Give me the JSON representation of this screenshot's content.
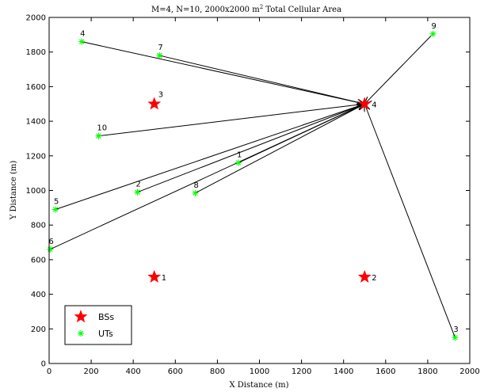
{
  "chart_data": {
    "type": "scatter",
    "title": "M=4, N=10, 2000x2000 m",
    "title_sup": "2",
    "title_suffix": " Total Cellular Area",
    "xlabel": "X Distance (m)",
    "ylabel": "Y Distance (m)",
    "xlim": [
      0,
      2000
    ],
    "ylim": [
      0,
      2000
    ],
    "xticks": [
      0,
      200,
      400,
      600,
      800,
      1000,
      1200,
      1400,
      1600,
      1800,
      2000
    ],
    "yticks": [
      0,
      200,
      400,
      600,
      800,
      1000,
      1200,
      1400,
      1600,
      1800,
      2000
    ],
    "grid": false,
    "legend_position": "bottom-left",
    "series": [
      {
        "name": "BSs",
        "marker": "star",
        "color": "#ff0000",
        "points": [
          {
            "label": "1",
            "x": 500,
            "y": 500
          },
          {
            "label": "2",
            "x": 1500,
            "y": 500
          },
          {
            "label": "3",
            "x": 500,
            "y": 1500
          },
          {
            "label": "4",
            "x": 1500,
            "y": 1500
          }
        ]
      },
      {
        "name": "UTs",
        "marker": "asterisk",
        "color": "#00ff00",
        "points": [
          {
            "label": "1",
            "x": 900,
            "y": 1160
          },
          {
            "label": "2",
            "x": 420,
            "y": 990
          },
          {
            "label": "3",
            "x": 1930,
            "y": 150
          },
          {
            "label": "4",
            "x": 155,
            "y": 1860
          },
          {
            "label": "5",
            "x": 30,
            "y": 890
          },
          {
            "label": "6",
            "x": 5,
            "y": 660
          },
          {
            "label": "7",
            "x": 525,
            "y": 1780
          },
          {
            "label": "8",
            "x": 695,
            "y": 985
          },
          {
            "label": "9",
            "x": 1825,
            "y": 1905
          },
          {
            "label": "10",
            "x": 235,
            "y": 1315
          }
        ]
      }
    ],
    "arrows": [
      {
        "from": [
          155,
          1860
        ],
        "to": [
          1500,
          1500
        ]
      },
      {
        "from": [
          525,
          1780
        ],
        "to": [
          1500,
          1500
        ]
      },
      {
        "from": [
          235,
          1315
        ],
        "to": [
          1500,
          1500
        ]
      },
      {
        "from": [
          30,
          890
        ],
        "to": [
          1500,
          1500
        ]
      },
      {
        "from": [
          5,
          660
        ],
        "to": [
          1500,
          1500
        ]
      },
      {
        "from": [
          420,
          990
        ],
        "to": [
          1500,
          1500
        ]
      },
      {
        "from": [
          695,
          985
        ],
        "to": [
          1500,
          1500
        ]
      },
      {
        "from": [
          900,
          1160
        ],
        "to": [
          1500,
          1500
        ]
      },
      {
        "from": [
          1825,
          1905
        ],
        "to": [
          1500,
          1500
        ]
      },
      {
        "from": [
          1930,
          150
        ],
        "to": [
          1500,
          1500
        ]
      }
    ]
  }
}
